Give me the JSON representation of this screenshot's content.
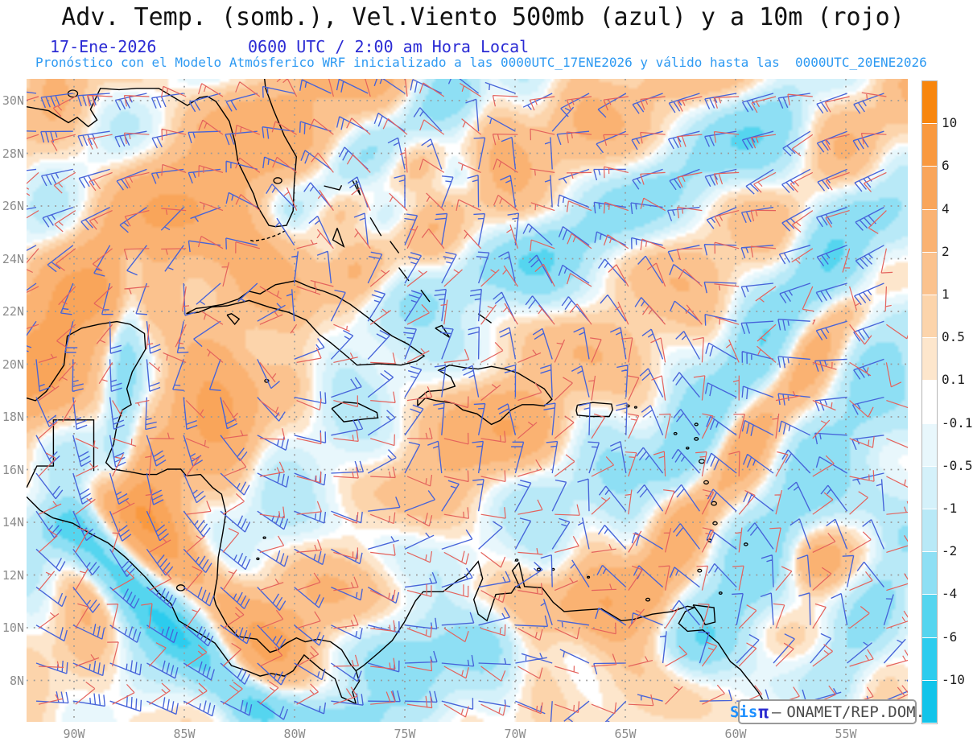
{
  "header": {
    "title": "Adv. Temp. (somb.), Vel.Viento 500mb (azul) y a 10m (rojo)",
    "date": "17-Ene-2026",
    "time": "0600 UTC / 2:00 am Hora Local",
    "forecast": "Pronóstico con el Modelo Atmósferico WRF inicializado a las 0000UTC_17ENE2026 y válido hasta las  0000UTC_20ENE2026"
  },
  "map": {
    "lat_labels": [
      "30N",
      "28N",
      "26N",
      "24N",
      "22N",
      "20N",
      "18N",
      "16N",
      "14N",
      "12N",
      "10N",
      "8N"
    ],
    "lon_labels": [
      "90W",
      "85W",
      "80W",
      "75W",
      "70W",
      "65W",
      "60W",
      "55W"
    ],
    "attribution": {
      "brand": "Sis",
      "pi": "π",
      "separator": "—",
      "org": "ONAMET/REP.DOM."
    }
  },
  "colorbar": {
    "tick_labels": [
      "10",
      "6",
      "4",
      "2",
      "1",
      "0.5",
      "0.1",
      "-0.1",
      "-0.5",
      "-1",
      "-2",
      "-4",
      "-6",
      "-10"
    ],
    "band_colors": [
      "#f8860d",
      "#f9993f",
      "#f9a55a",
      "#fab272",
      "#fbc28e",
      "#fcd4ab",
      "#fde6cc",
      "#ffffff",
      "#e8f7fc",
      "#d4f1fa",
      "#b8e9f7",
      "#8edff4",
      "#55d5ef",
      "#2cccee",
      "#12c4ea"
    ]
  },
  "colors": {
    "title_text": "#111111",
    "date_text": "#2b2bd4",
    "forecast_text": "#2e9af2",
    "wind_500mb": "#4663d9",
    "wind_10m": "#e4625c",
    "coastline": "#000000",
    "grid_dots": "#9a9a9a",
    "axis_labels": "#8c8c8c"
  }
}
